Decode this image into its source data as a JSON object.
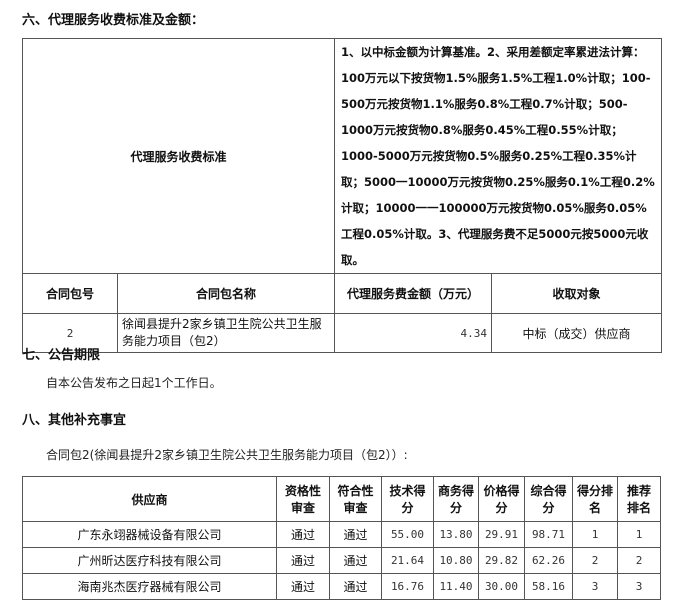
{
  "section6": {
    "title": "六、代理服务收费标准及金额：",
    "fee_label": "代理服务收费标准",
    "fee_rule": "1、以中标金额为计算基准。2、采用差额定率累进法计算：100万元以下按货物1.5%服务1.5%工程1.0%计取；100-500万元按货物1.1%服务0.8%工程0.7%计取；500-1000万元按货物0.8%服务0.45%工程0.55%计取；1000-5000万元按货物0.5%服务0.25%工程0.35%计取；5000一10000万元按货物0.25%服务0.1%工程0.2%计取；10000一一100000万元按货物0.05%服务0.05%工程0.05%计取。3、代理服务费不足5000元按5000元收取。",
    "headers": [
      "合同包号",
      "合同包名称",
      "代理服务费金额（万元）",
      "收取对象"
    ],
    "rows": [
      [
        "2",
        "徐闻县提升2家乡镇卫生院公共卫生服务能力项目（包2）",
        "4.34",
        "中标（成交）供应商"
      ]
    ]
  },
  "section7": {
    "title": "七、公告期限",
    "text": "自本公告发布之日起1个工作日。"
  },
  "section8": {
    "title": "八、其他补充事宜",
    "intro": "合同包2(徐闻县提升2家乡镇卫生院公共卫生服务能力项目（包2））:",
    "headers": [
      "供应商",
      "资格性审查",
      "符合性审查",
      "技术得分",
      "商务得分",
      "价格得分",
      "综合得分",
      "得分排名",
      "推荐排名"
    ],
    "rows": [
      [
        "广东永翊器械设备有限公司",
        "通过",
        "通过",
        "55.00",
        "13.80",
        "29.91",
        "98.71",
        "1",
        "1"
      ],
      [
        "广州昕达医疗科技有限公司",
        "通过",
        "通过",
        "21.64",
        "10.80",
        "29.82",
        "62.26",
        "2",
        "2"
      ],
      [
        "海南兆杰医疗器械有限公司",
        "通过",
        "通过",
        "16.76",
        "11.40",
        "30.00",
        "58.16",
        "3",
        "3"
      ]
    ]
  }
}
